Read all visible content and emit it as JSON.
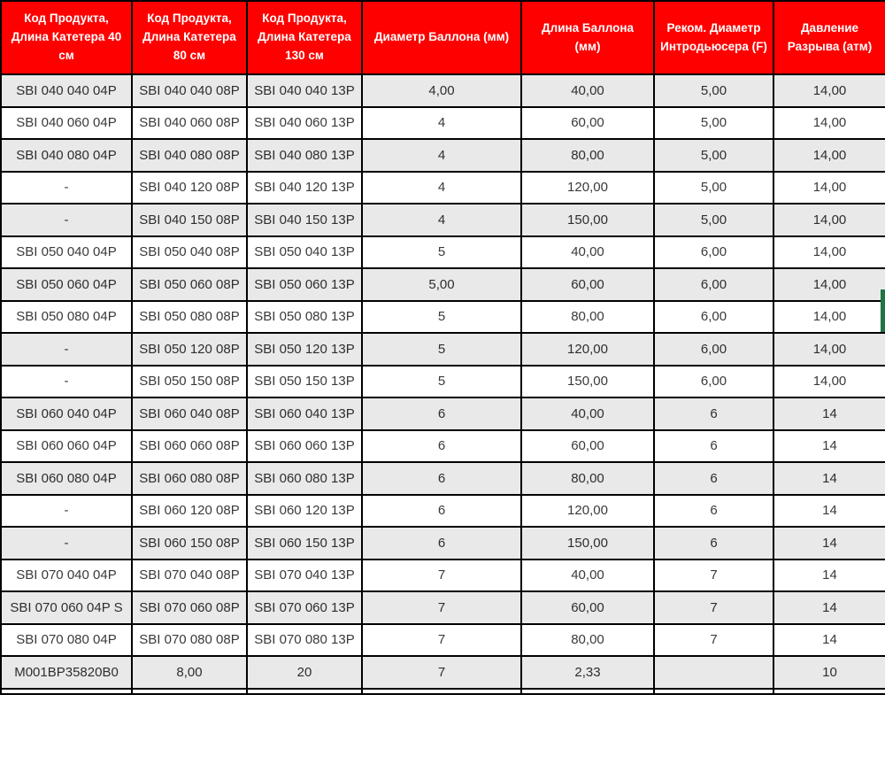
{
  "colors": {
    "header_bg": "#FF0000",
    "header_text": "#FFFFFF",
    "stripe_row_bg": "#E9E9E9",
    "white_row_bg": "#FFFFFF",
    "grid_border": "#000000",
    "body_text": "#3A3A3A",
    "selection_border_green": "#217346"
  },
  "table": {
    "columns": [
      "Код Продукта, Длина Катетера 40 см",
      "Код Продукта, Длина Катетера 80 см",
      "Код Продукта, Длина Катетера 130 см",
      "Диаметр Баллона (мм)",
      "Длина Баллона (мм)",
      "Реком. Диаметр Интродьюсера (F)",
      "Давление Разрыва (атм)"
    ],
    "rows": [
      [
        "SBI 040 040 04P",
        "SBI 040 040 08P",
        "SBI 040 040 13P",
        "4,00",
        "40,00",
        "5,00",
        "14,00"
      ],
      [
        "SBI 040 060 04P",
        "SBI 040 060 08P",
        "SBI 040 060 13P",
        "4",
        "60,00",
        "5,00",
        "14,00"
      ],
      [
        "SBI 040 080 04P",
        "SBI 040 080 08P",
        "SBI 040 080 13P",
        "4",
        "80,00",
        "5,00",
        "14,00"
      ],
      [
        "-",
        "SBI 040 120 08P",
        "SBI 040 120 13P",
        "4",
        "120,00",
        "5,00",
        "14,00"
      ],
      [
        "-",
        "SBI 040 150 08P",
        "SBI 040 150 13P",
        "4",
        "150,00",
        "5,00",
        "14,00"
      ],
      [
        "SBI 050 040 04P",
        "SBI 050 040 08P",
        "SBI 050 040 13P",
        "5",
        "40,00",
        "6,00",
        "14,00"
      ],
      [
        "SBI 050 060 04P",
        "SBI 050 060 08P",
        "SBI 050 060 13P",
        "5,00",
        "60,00",
        "6,00",
        "14,00"
      ],
      [
        "SBI 050 080 04P",
        "SBI 050 080 08P",
        "SBI 050 080 13P",
        "5",
        "80,00",
        "6,00",
        "14,00"
      ],
      [
        "-",
        "SBI 050 120 08P",
        "SBI 050 120 13P",
        "5",
        "120,00",
        "6,00",
        "14,00"
      ],
      [
        "-",
        "SBI 050 150 08P",
        "SBI 050 150 13P",
        "5",
        "150,00",
        "6,00",
        "14,00"
      ],
      [
        "SBI 060 040 04P",
        "SBI 060 040 08P",
        "SBI 060 040 13P",
        "6",
        "40,00",
        "6",
        "14"
      ],
      [
        "SBI 060 060 04P",
        "SBI 060 060 08P",
        "SBI 060 060 13P",
        "6",
        "60,00",
        "6",
        "14"
      ],
      [
        "SBI 060 080 04P",
        "SBI 060 080 08P",
        "SBI 060 080 13P",
        "6",
        "80,00",
        "6",
        "14"
      ],
      [
        "-",
        "SBI 060 120 08P",
        "SBI 060 120 13P",
        "6",
        "120,00",
        "6",
        "14"
      ],
      [
        "-",
        "SBI 060 150 08P",
        "SBI 060 150 13P",
        "6",
        "150,00",
        "6",
        "14"
      ],
      [
        "SBI 070 040 04P",
        "SBI 070 040 08P",
        "SBI 070 040 13P",
        "7",
        "40,00",
        "7",
        "14"
      ],
      [
        "SBI 070 060 04P S",
        "SBI 070 060 08P",
        "SBI 070 060 13P",
        "7",
        "60,00",
        "7",
        "14"
      ],
      [
        "SBI 070 080 04P",
        "SBI 070 080 08P",
        "SBI 070 080 13P",
        "7",
        "80,00",
        "7",
        "14"
      ],
      [
        "M001BP35820B0",
        "8,00",
        "20",
        "7",
        "2,33",
        "",
        "10"
      ]
    ]
  },
  "selection_marker": {
    "description": "green selected-cell border fragment on right edge of row 7",
    "row": 7
  }
}
